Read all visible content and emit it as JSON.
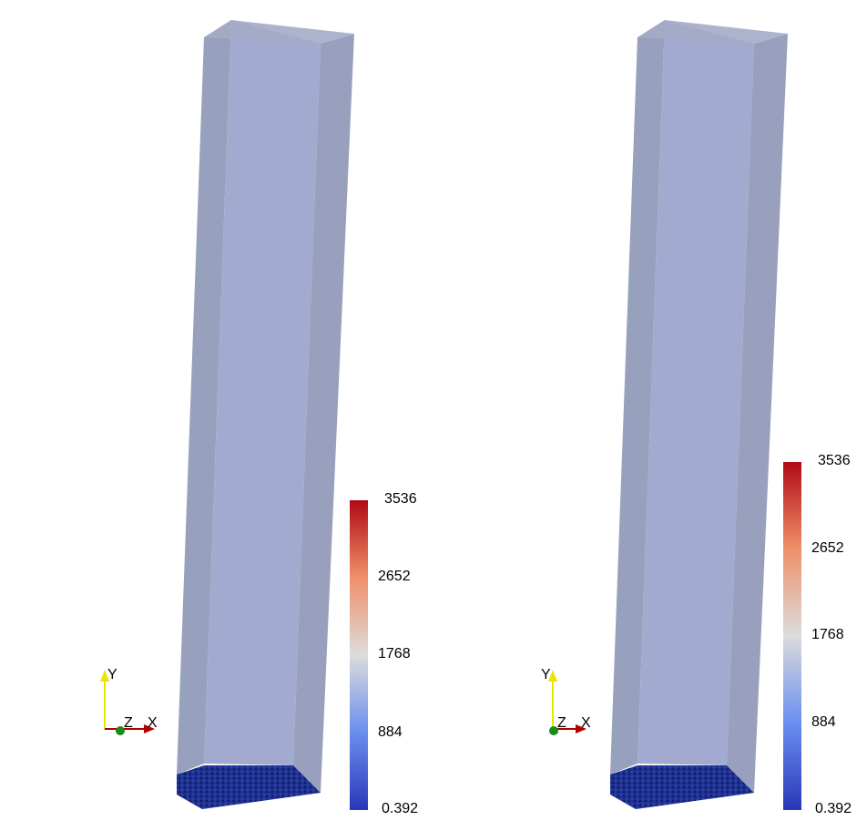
{
  "colors": {
    "box_front": "#a2abcf",
    "box_side": "#98a0bd",
    "box_top": "#a1a8c3",
    "particles": "#1a2d85",
    "colormap_low": "#3b4cc0",
    "colormap_mid": "#dddddd",
    "colormap_high": "#b40426",
    "axis_x": "#b00000",
    "axis_y": "#e6e600",
    "axis_z": "#1a8a1a"
  },
  "views": [
    {
      "colorbar": {
        "ticks": [
          "3536",
          "2652",
          "1768",
          "884",
          "0.392"
        ]
      },
      "axes": {
        "x": "X",
        "y": "Y",
        "z": "Z"
      }
    },
    {
      "colorbar": {
        "ticks": [
          "3536",
          "2652",
          "1768",
          "884",
          "0.392"
        ]
      },
      "axes": {
        "x": "X",
        "y": "Y",
        "z": "Z"
      }
    }
  ]
}
